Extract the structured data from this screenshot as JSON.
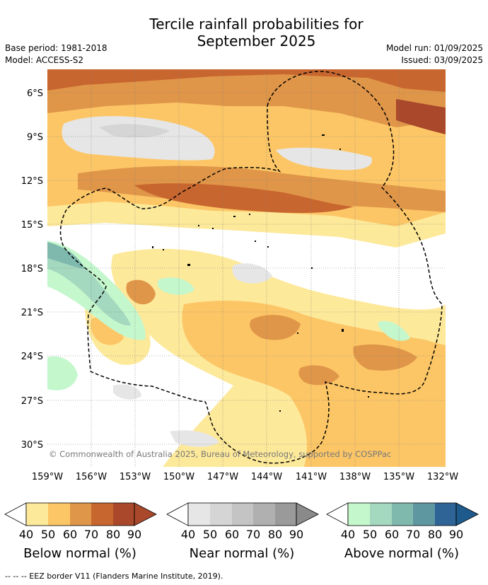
{
  "title_line1": "Tercile rainfall probabilities for",
  "title_line2": "September 2025",
  "meta": {
    "base_period": "Base period: 1981-2018",
    "model": "Model: ACCESS-S2",
    "model_run": "Model run: 01/09/2025",
    "issued": "Issued: 03/09/2025"
  },
  "map": {
    "lat_labels": [
      "6°S",
      "9°S",
      "12°S",
      "15°S",
      "18°S",
      "21°S",
      "24°S",
      "27°S",
      "30°S"
    ],
    "lon_labels": [
      "159°W",
      "156°W",
      "153°W",
      "150°W",
      "147°W",
      "144°W",
      "141°W",
      "138°W",
      "135°W",
      "132°W"
    ],
    "copyright": "© Commonwealth of Australia 2025, Bureau of Meteorology, supported by COSPPac",
    "colors": {
      "below": [
        "#fde99a",
        "#fcc666",
        "#e09649",
        "#c8662f",
        "#a9482a"
      ],
      "near": [
        "#e6e6e6",
        "#d5d5d5",
        "#c4c4c4",
        "#b0b0b0",
        "#9a9a9a"
      ],
      "above": [
        "#c5f7cd",
        "#a4d8bf",
        "#7fb9ae",
        "#5f97a0",
        "#2e6496"
      ],
      "land": "#000000",
      "eez": "#000000"
    }
  },
  "colorbars": [
    {
      "name": "below",
      "label": "Below normal (%)",
      "ticks": [
        "40",
        "50",
        "60",
        "70",
        "80",
        "90"
      ]
    },
    {
      "name": "near",
      "label": "Near normal (%)",
      "ticks": [
        "40",
        "50",
        "60",
        "70",
        "80",
        "90"
      ]
    },
    {
      "name": "above",
      "label": "Above normal (%)",
      "ticks": [
        "40",
        "50",
        "60",
        "70",
        "80",
        "90"
      ]
    }
  ],
  "footer": "--  --  -- EEZ border V11 (Flanders Marine Institute, 2019)."
}
